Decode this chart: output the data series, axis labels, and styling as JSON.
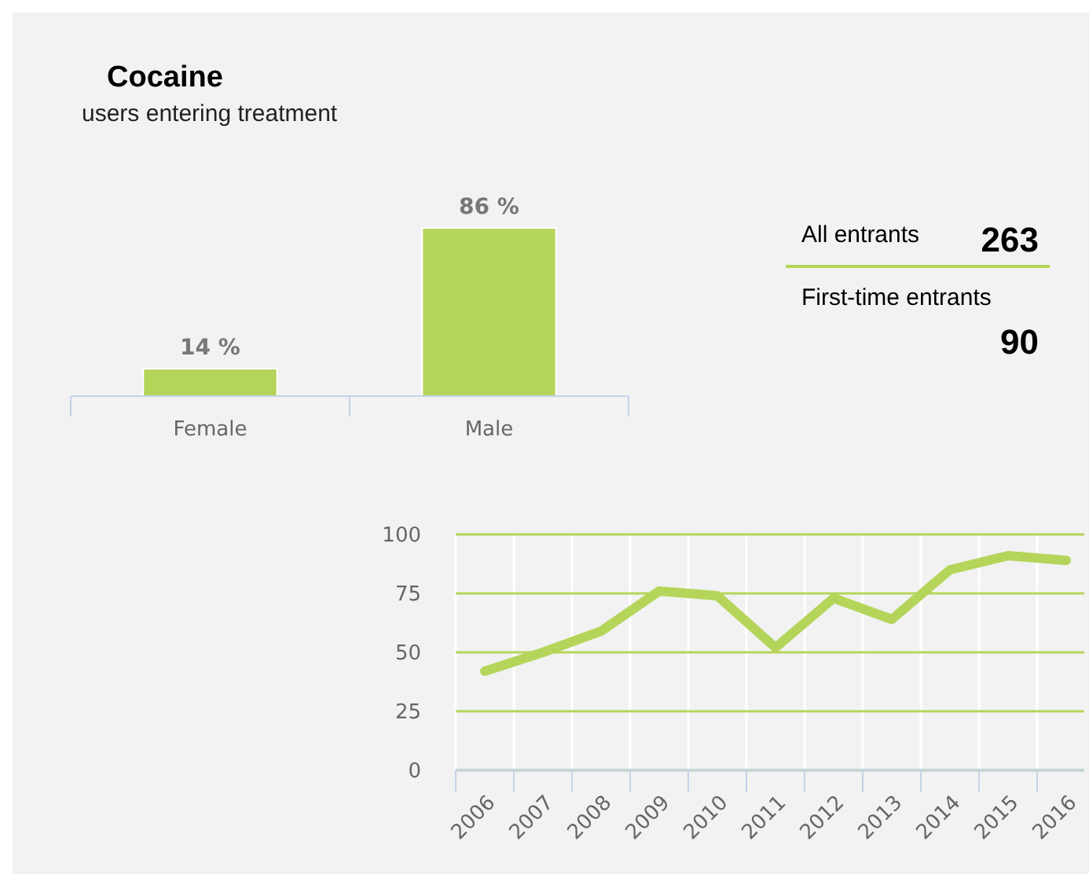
{
  "chart_data": [
    {
      "type": "bar",
      "title": "Cocaine",
      "subtitle": "users entering treatment",
      "categories": [
        "Female",
        "Male"
      ],
      "values": [
        14,
        86
      ],
      "value_labels": [
        "14 %",
        "86 %"
      ],
      "color": "#b5d55a"
    },
    {
      "type": "other",
      "annotations": [
        "All entrants",
        "263",
        "First-time entrants",
        "90"
      ],
      "color": "#b5d55a"
    },
    {
      "type": "line",
      "categories": [
        "2006",
        "2007",
        "2008",
        "2009",
        "2010",
        "2011",
        "2012",
        "2013",
        "2014",
        "2015",
        "2016"
      ],
      "series": [
        {
          "color": "#b5d55a",
          "values": [
            42,
            50,
            59,
            76,
            74,
            52,
            73,
            64,
            85,
            91,
            89
          ]
        }
      ],
      "ylim": [
        0,
        100
      ],
      "yticks": [
        0,
        25,
        50,
        75,
        100
      ],
      "grid": true
    }
  ]
}
